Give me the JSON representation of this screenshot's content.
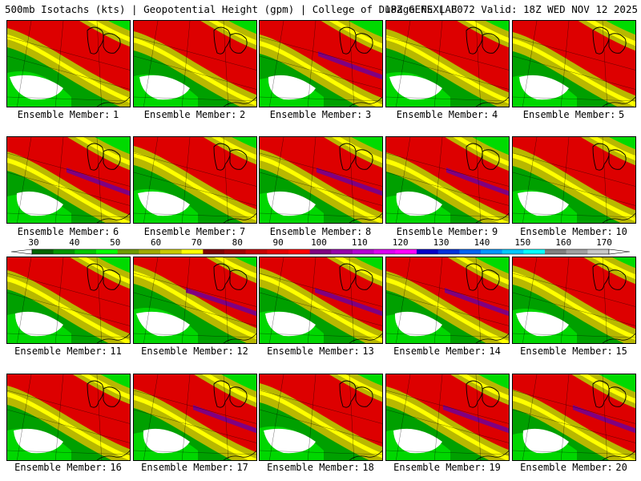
{
  "header": {
    "left": "500mb Isotachs (kts) | Geopotential Height (gpm) | College of DuPage NEXLAB",
    "right": "18Z GEFS | F072 Valid: 18Z WED NOV 12 2025"
  },
  "member_label": "Ensemble Member:",
  "members": [
    "1",
    "2",
    "3",
    "4",
    "5",
    "6",
    "7",
    "8",
    "9",
    "10",
    "11",
    "12",
    "13",
    "14",
    "15",
    "16",
    "17",
    "18",
    "19",
    "20"
  ],
  "colorbar": {
    "ticks": [
      "30",
      "40",
      "50",
      "60",
      "70",
      "80",
      "90",
      "100",
      "110",
      "120",
      "130",
      "140",
      "150",
      "160",
      "170"
    ],
    "colors": [
      "#006400",
      "#009600",
      "#00c800",
      "#00ff00",
      "#6e9b00",
      "#a0aa00",
      "#c8c800",
      "#ffff00",
      "#7f0000",
      "#a00000",
      "#c80000",
      "#e60000",
      "#ff0000",
      "#800080",
      "#9600aa",
      "#b400d2",
      "#dc00f0",
      "#ff00ff",
      "#0000c8",
      "#0032dc",
      "#0064f0",
      "#0096ff",
      "#00c8ff",
      "#00ffff",
      "#808080",
      "#a0a0a0",
      "#c8c8c8"
    ]
  },
  "colors": {
    "wind_30_50": "#00a000",
    "wind_50_60": "#00e000",
    "wind_60_70": "#b8b800",
    "wind_70_80": "#ffff00",
    "wind_80_100": "#dd0000",
    "wind_100_110": "#800080",
    "map_lines": "#000000"
  }
}
